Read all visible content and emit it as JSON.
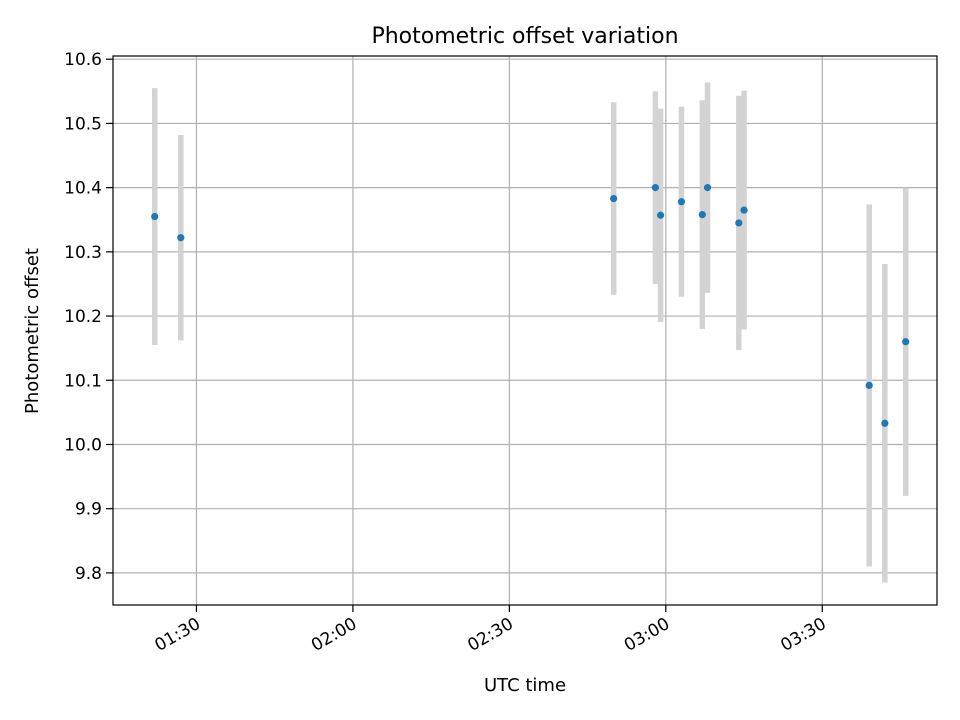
{
  "chart_data": {
    "type": "scatter",
    "title": "Photometric offset variation",
    "xlabel": "UTC time",
    "ylabel": "Photometric offset",
    "x_ticks": [
      "01:30",
      "02:00",
      "02:30",
      "03:00",
      "03:30"
    ],
    "y_ticks": [
      "9.8",
      "9.9",
      "10.0",
      "10.1",
      "10.2",
      "10.3",
      "10.4",
      "10.5",
      "10.6"
    ],
    "xlim": [
      "01:14",
      "03:52"
    ],
    "ylim": [
      9.75,
      10.605
    ],
    "grid": true,
    "point_color": "#1f77b4",
    "errorbar_color": "#d3d3d3",
    "points": [
      {
        "x": "01:22",
        "y": 10.355,
        "err": 0.2
      },
      {
        "x": "01:27",
        "y": 10.322,
        "err": 0.16
      },
      {
        "x": "02:50",
        "y": 10.383,
        "err": 0.15
      },
      {
        "x": "02:58",
        "y": 10.4,
        "err": 0.15
      },
      {
        "x": "02:59",
        "y": 10.357,
        "err": 0.166
      },
      {
        "x": "03:03",
        "y": 10.378,
        "err": 0.148
      },
      {
        "x": "03:07",
        "y": 10.358,
        "err": 0.178
      },
      {
        "x": "03:08",
        "y": 10.4,
        "err": 0.164
      },
      {
        "x": "03:14",
        "y": 10.345,
        "err": 0.198
      },
      {
        "x": "03:15",
        "y": 10.365,
        "err": 0.186
      },
      {
        "x": "03:39",
        "y": 10.092,
        "err": 0.282
      },
      {
        "x": "03:42",
        "y": 10.033,
        "err": 0.248
      },
      {
        "x": "03:46",
        "y": 10.16,
        "err": 0.24
      }
    ]
  }
}
